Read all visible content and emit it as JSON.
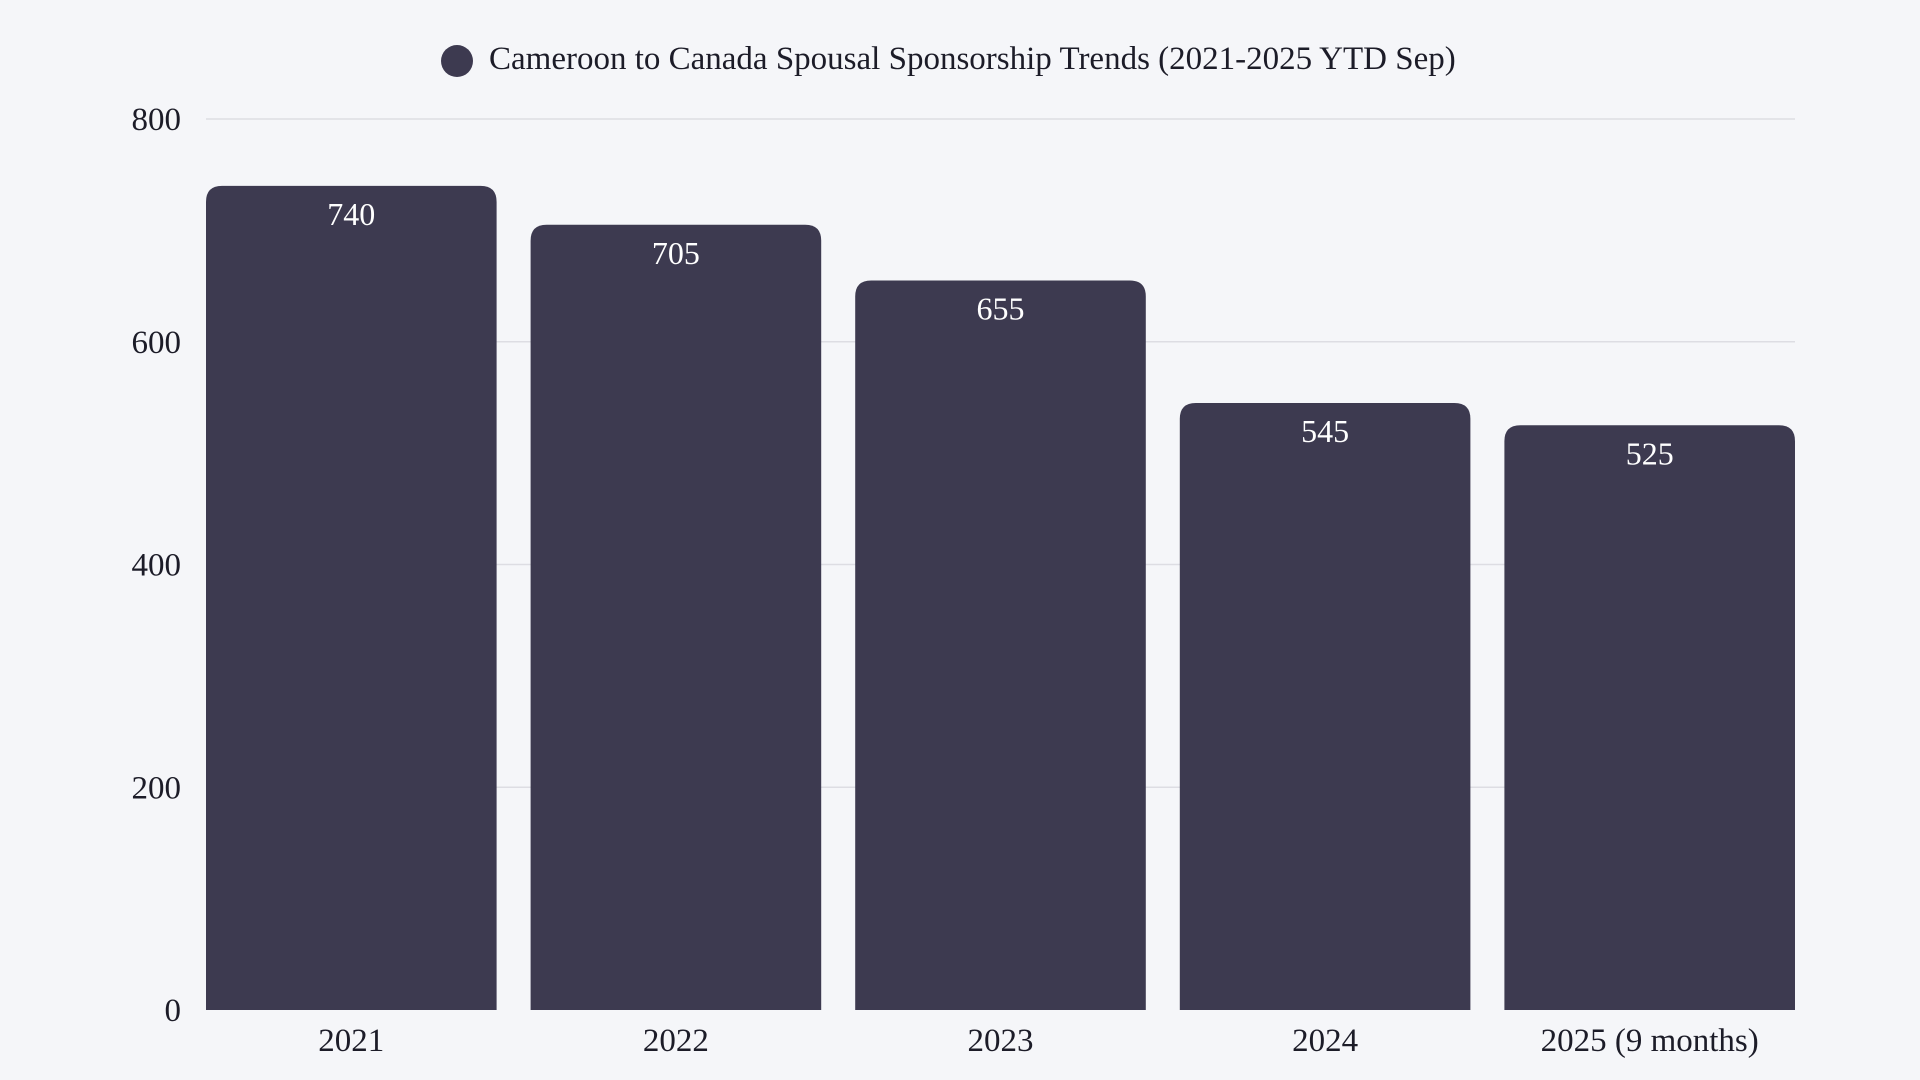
{
  "chart_data": {
    "type": "bar",
    "title": "Cameroon to Canada Spousal Sponsorship Trends (2021-2025 YTD Sep)",
    "categories": [
      "2021",
      "2022",
      "2023",
      "2024",
      "2025 (9 months)"
    ],
    "values": [
      740,
      705,
      655,
      545,
      525
    ],
    "data_labels": [
      "740",
      "705",
      "655",
      "545",
      "525"
    ],
    "xlabel": "",
    "ylabel": "",
    "ylim": [
      0,
      800
    ],
    "yticks": [
      "0",
      "200",
      "400",
      "600",
      "800"
    ],
    "grid": true,
    "legend": "top-center",
    "colors": {
      "bar": "#3d3a50",
      "background": "#f5f6f9",
      "grid": "#dddde3"
    }
  }
}
